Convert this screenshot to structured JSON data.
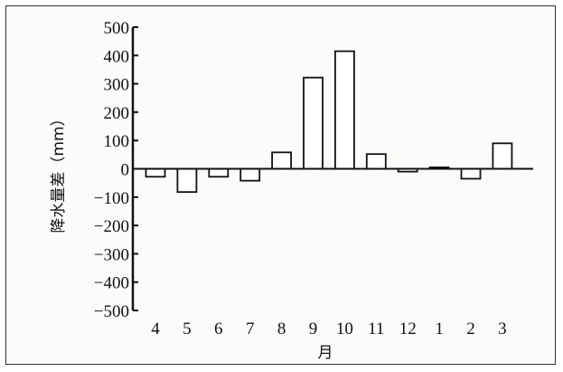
{
  "chart_data": {
    "type": "bar",
    "categories": [
      "4",
      "5",
      "6",
      "7",
      "8",
      "9",
      "10",
      "11",
      "12",
      "1",
      "2",
      "3"
    ],
    "values": [
      -28,
      -82,
      -28,
      -42,
      58,
      322,
      415,
      52,
      -10,
      5,
      -35,
      90
    ],
    "title": "",
    "xlabel": "月",
    "ylabel": "降水量差（mm）",
    "ylim": [
      -500,
      500
    ],
    "yticks": [
      500,
      400,
      300,
      200,
      100,
      0,
      -100,
      -200,
      -300,
      -400,
      -500
    ],
    "ytick_labels": [
      "500",
      "400",
      "300",
      "200",
      "100",
      "0",
      "−100",
      "−200",
      "−300",
      "−400",
      "−500"
    ],
    "grid": false,
    "bar_fill": "#ffffff",
    "bar_stroke": "#111111"
  }
}
